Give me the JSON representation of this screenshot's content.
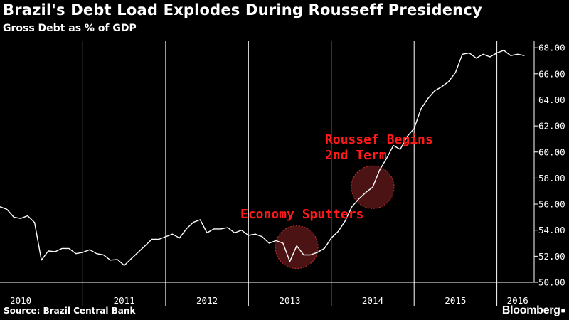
{
  "chart_data": {
    "type": "line",
    "title": "Brazil's Debt Load Explodes During Rousseff Presidency",
    "subtitle": "Gross Debt as % of GDP",
    "xlabel": "",
    "ylabel": "",
    "ylim": [
      50,
      68.5
    ],
    "xlim": [
      2010,
      2016.45
    ],
    "yticks": [
      50,
      52,
      54,
      56,
      58,
      60,
      62,
      64,
      66,
      68
    ],
    "ytick_labels": [
      "50.00",
      "52.00",
      "54.00",
      "56.00",
      "58.00",
      "60.00",
      "62.00",
      "64.00",
      "66.00",
      "68.00"
    ],
    "year_boundaries": [
      2011,
      2012,
      2013,
      2014,
      2015,
      2016
    ],
    "year_labels": [
      {
        "label": "2010",
        "x": 2010.25
      },
      {
        "label": "2011",
        "x": 2011.5
      },
      {
        "label": "2012",
        "x": 2012.5
      },
      {
        "label": "2013",
        "x": 2013.5
      },
      {
        "label": "2014",
        "x": 2014.5
      },
      {
        "label": "2015",
        "x": 2015.5
      },
      {
        "label": "2016",
        "x": 2016.25
      }
    ],
    "grid": false,
    "series": [
      {
        "name": "Gross Debt as % of GDP",
        "color": "#ffffff",
        "x": [
          2010.0,
          2010.083,
          2010.167,
          2010.25,
          2010.333,
          2010.417,
          2010.5,
          2010.583,
          2010.667,
          2010.75,
          2010.833,
          2010.917,
          2011.0,
          2011.083,
          2011.167,
          2011.25,
          2011.333,
          2011.417,
          2011.5,
          2011.583,
          2011.667,
          2011.75,
          2011.833,
          2011.917,
          2012.0,
          2012.083,
          2012.167,
          2012.25,
          2012.333,
          2012.417,
          2012.5,
          2012.583,
          2012.667,
          2012.75,
          2012.833,
          2012.917,
          2013.0,
          2013.083,
          2013.167,
          2013.25,
          2013.333,
          2013.417,
          2013.5,
          2013.583,
          2013.667,
          2013.75,
          2013.833,
          2013.917,
          2014.0,
          2014.083,
          2014.167,
          2014.25,
          2014.333,
          2014.417,
          2014.5,
          2014.583,
          2014.667,
          2014.75,
          2014.833,
          2014.917,
          2015.0,
          2015.083,
          2015.167,
          2015.25,
          2015.333,
          2015.417,
          2015.5,
          2015.583,
          2015.667,
          2015.75,
          2015.833,
          2015.917,
          2016.0,
          2016.083,
          2016.167,
          2016.25,
          2016.333
        ],
        "values": [
          55.8,
          55.6,
          55.0,
          54.9,
          55.1,
          54.6,
          51.7,
          52.4,
          52.35,
          52.6,
          52.6,
          52.2,
          52.3,
          52.5,
          52.2,
          52.1,
          51.7,
          51.75,
          51.3,
          51.8,
          52.3,
          52.8,
          53.3,
          53.3,
          53.5,
          53.7,
          53.4,
          54.1,
          54.6,
          54.8,
          53.8,
          54.1,
          54.1,
          54.2,
          53.8,
          54.0,
          53.6,
          53.7,
          53.5,
          53.0,
          53.2,
          53.0,
          51.6,
          52.8,
          52.1,
          52.1,
          52.3,
          52.6,
          53.4,
          53.9,
          54.7,
          55.8,
          56.4,
          56.9,
          57.3,
          58.6,
          59.5,
          60.5,
          60.2,
          61.2,
          61.8,
          63.3,
          64.1,
          64.7,
          65.0,
          65.4,
          66.1,
          67.5,
          67.6,
          67.2,
          67.5,
          67.3,
          67.6,
          67.8,
          67.4,
          67.5,
          67.4
        ]
      }
    ],
    "annotations": [
      {
        "text": "Economy Sputters",
        "color": "#ff1a1a"
      },
      {
        "text": "Roussef Begins",
        "color": "#ff1a1a"
      },
      {
        "text": "2nd Term",
        "color": "#ff1a1a"
      }
    ],
    "highlight_points": [
      {
        "x": 2013.583,
        "y": 52.7,
        "color": "#e83a3a"
      },
      {
        "x": 2014.5,
        "y": 57.3,
        "color": "#e83a3a"
      }
    ]
  },
  "footer": {
    "source": "Source: Brazil Central Bank",
    "brand": "Bloomberg",
    "brand_mark": "■"
  }
}
